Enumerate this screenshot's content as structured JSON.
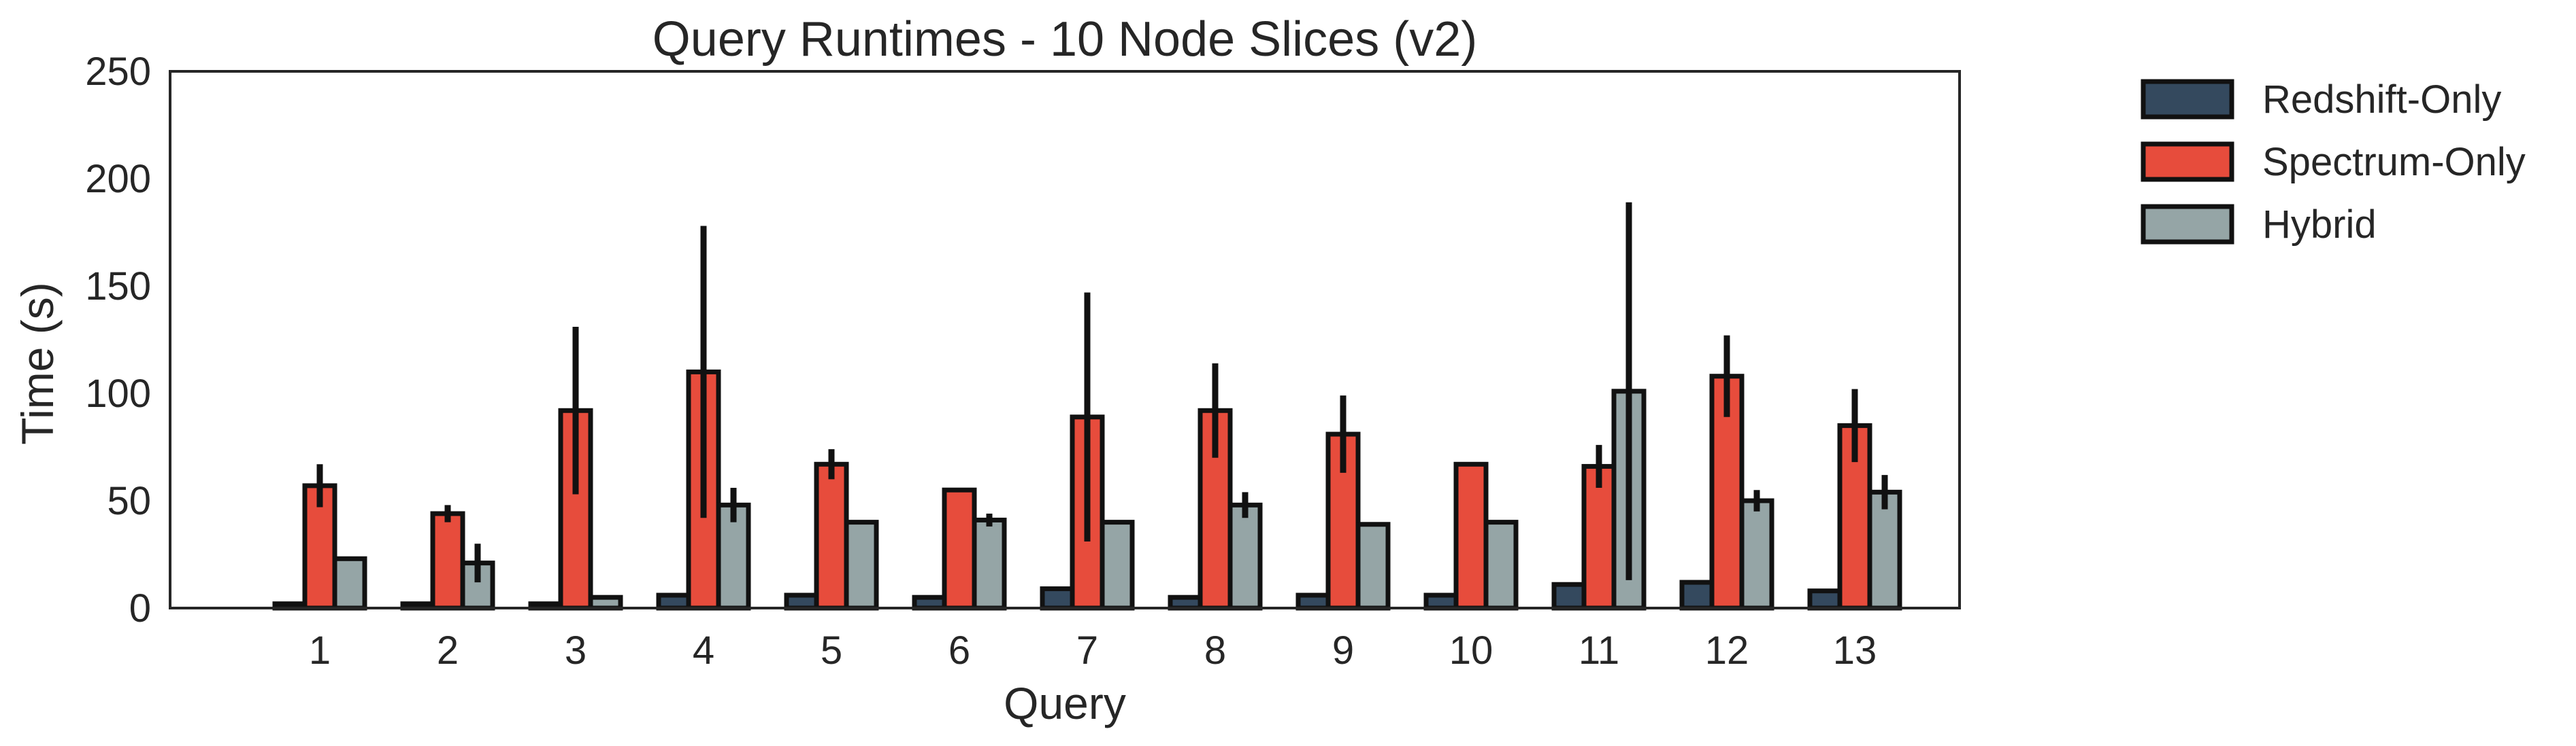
{
  "chart_data": {
    "type": "bar",
    "title": "Query Runtimes - 10 Node Slices (v2)",
    "xlabel": "Query",
    "ylabel": "Time (s)",
    "ylim": [
      0,
      250
    ],
    "yticks": [
      0,
      50,
      100,
      150,
      200,
      250
    ],
    "grid": false,
    "legend_position": "outside-right-top",
    "categories": [
      "1",
      "2",
      "3",
      "4",
      "5",
      "6",
      "7",
      "8",
      "9",
      "10",
      "11",
      "12",
      "13"
    ],
    "series": [
      {
        "name": "Redshift-Only",
        "color": "#34495e",
        "values": [
          2,
          2,
          2,
          6,
          6,
          5,
          9,
          5,
          6,
          6,
          11,
          12,
          8
        ],
        "errors": [
          0,
          0,
          0,
          0,
          0,
          0,
          0,
          0,
          0,
          0,
          0,
          0,
          0
        ]
      },
      {
        "name": "Spectrum-Only",
        "color": "#e74c3c",
        "values": [
          57,
          44,
          92,
          110,
          67,
          55,
          89,
          92,
          81,
          67,
          66,
          108,
          85
        ],
        "errors": [
          10,
          4,
          39,
          68,
          7,
          0,
          58,
          22,
          18,
          0,
          10,
          19,
          17
        ]
      },
      {
        "name": "Hybrid",
        "color": "#95a5a6",
        "values": [
          23,
          21,
          5,
          48,
          40,
          41,
          40,
          48,
          39,
          40,
          101,
          50,
          54
        ],
        "errors": [
          1,
          9,
          0,
          8,
          0,
          3,
          0,
          6,
          0,
          0,
          88,
          5,
          8
        ]
      }
    ]
  }
}
